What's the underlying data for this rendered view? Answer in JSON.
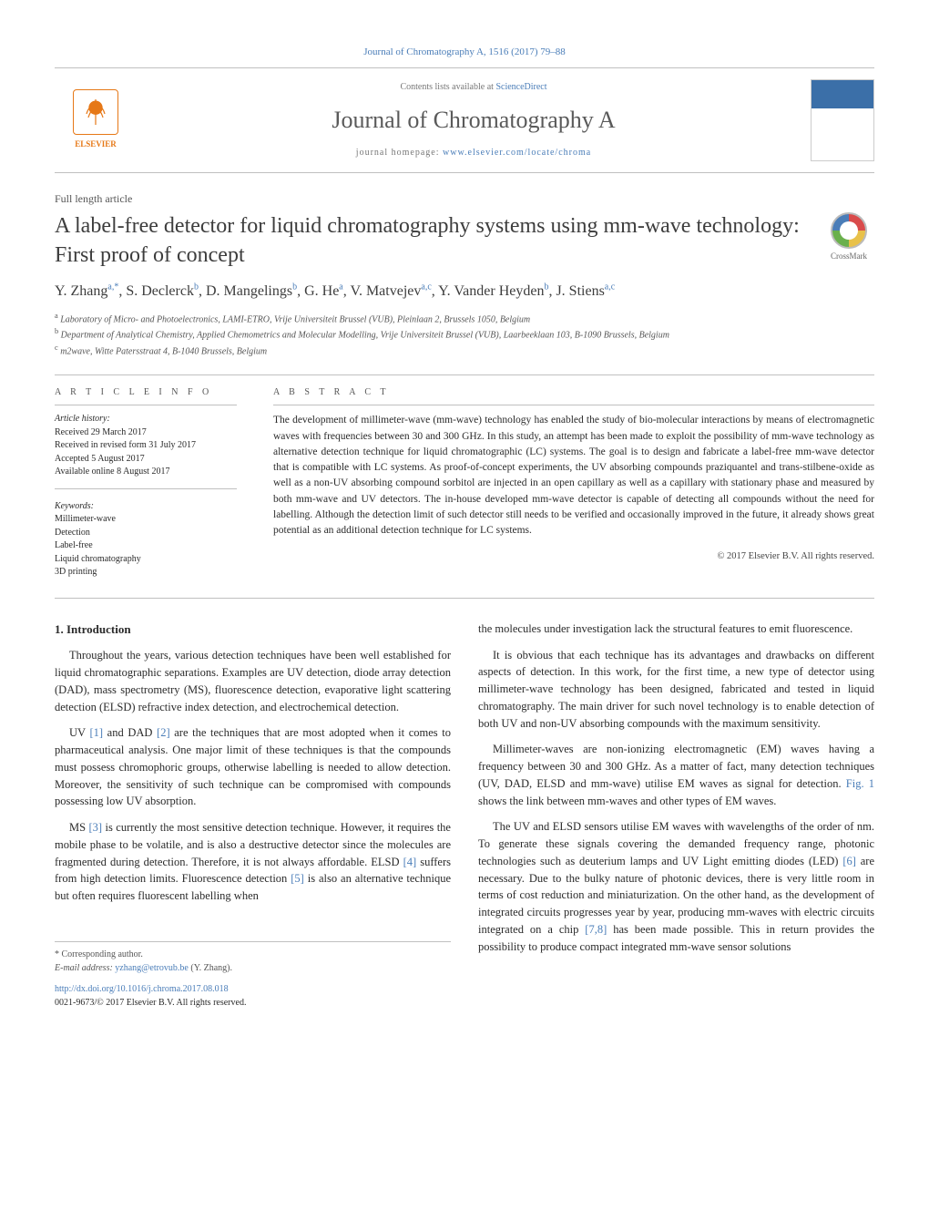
{
  "journal_ref": "Journal of Chromatography A, 1516 (2017) 79–88",
  "contents_line_prefix": "Contents lists available at ",
  "contents_line_link": "ScienceDirect",
  "journal_name": "Journal of Chromatography A",
  "homepage_prefix": "journal homepage: ",
  "homepage_url": "www.elsevier.com/locate/chroma",
  "elsevier_label": "ELSEVIER",
  "article_type": "Full length article",
  "article_title": "A label-free detector for liquid chromatography systems using mm-wave technology: First proof of concept",
  "crossmark_label": "CrossMark",
  "authors_html": "Y. Zhang<sup>a,*</sup>, S. Declerck<sup>b</sup>, D. Mangelings<sup>b</sup>, G. He<sup>a</sup>, V. Matvejev<sup>a,c</sup>, Y. Vander Heyden<sup>b</sup>, J. Stiens<sup>a,c</sup>",
  "affiliations": {
    "a": "Laboratory of Micro- and Photoelectronics, LAMI-ETRO, Vrije Universiteit Brussel (VUB), Pleinlaan 2, Brussels 1050, Belgium",
    "b": "Department of Analytical Chemistry, Applied Chemometrics and Molecular Modelling, Vrije Universiteit Brussel (VUB), Laarbeeklaan 103, B-1090 Brussels, Belgium",
    "c": "m2wave, Witte Patersstraat 4, B-1040 Brussels, Belgium"
  },
  "info_heading": "a r t i c l e   i n f o",
  "abstract_heading": "a b s t r a c t",
  "history_label": "Article history:",
  "history": [
    "Received 29 March 2017",
    "Received in revised form 31 July 2017",
    "Accepted 5 August 2017",
    "Available online 8 August 2017"
  ],
  "keywords_label": "Keywords:",
  "keywords": [
    "Millimeter-wave",
    "Detection",
    "Label-free",
    "Liquid chromatography",
    "3D printing"
  ],
  "abstract_text": "The development of millimeter-wave (mm-wave) technology has enabled the study of bio-molecular interactions by means of electromagnetic waves with frequencies between 30 and 300 GHz. In this study, an attempt has been made to exploit the possibility of mm-wave technology as alternative detection technique for liquid chromatographic (LC) systems. The goal is to design and fabricate a label-free mm-wave detector that is compatible with LC systems. As proof-of-concept experiments, the UV absorbing compounds praziquantel and trans-stilbene-oxide as well as a non-UV absorbing compound sorbitol are injected in an open capillary as well as a capillary with stationary phase and measured by both mm-wave and UV detectors. The in-house developed mm-wave detector is capable of detecting all compounds without the need for labelling. Although the detection limit of such detector still needs to be verified and occasionally improved in the future, it already shows great potential as an additional detection technique for LC systems.",
  "copyright": "© 2017 Elsevier B.V. All rights reserved.",
  "section1_heading": "1. Introduction",
  "col1": {
    "p1": "Throughout the years, various detection techniques have been well established for liquid chromatographic separations. Examples are UV detection, diode array detection (DAD), mass spectrometry (MS), fluorescence detection, evaporative light scattering detection (ELSD) refractive index detection, and electrochemical detection.",
    "p2_a": "UV ",
    "p2_ref1": "[1]",
    "p2_b": " and DAD ",
    "p2_ref2": "[2]",
    "p2_c": " are the techniques that are most adopted when it comes to pharmaceutical analysis. One major limit of these techniques is that the compounds must possess chromophoric groups, otherwise labelling is needed to allow detection. Moreover, the sensitivity of such technique can be compromised with compounds possessing low UV absorption.",
    "p3_a": "MS ",
    "p3_ref3": "[3]",
    "p3_b": " is currently the most sensitive detection technique. However, it requires the mobile phase to be volatile, and is also a destructive detector since the molecules are fragmented during detection. Therefore, it is not always affordable. ELSD ",
    "p3_ref4": "[4]",
    "p3_c": " suffers from high detection limits. Fluorescence detection ",
    "p3_ref5": "[5]",
    "p3_d": " is also an alternative technique but often requires fluorescent labelling when"
  },
  "col2": {
    "p1": "the molecules under investigation lack the structural features to emit fluorescence.",
    "p2": "It is obvious that each technique has its advantages and drawbacks on different aspects of detection. In this work, for the first time, a new type of detector using millimeter-wave technology has been designed, fabricated and tested in liquid chromatography. The main driver for such novel technology is to enable detection of both UV and non-UV absorbing compounds with the maximum sensitivity.",
    "p3_a": "Millimeter-waves are non-ionizing electromagnetic (EM) waves having a frequency between 30 and 300 GHz. As a matter of fact, many detection techniques (UV, DAD, ELSD and mm-wave) utilise EM waves as signal for detection. ",
    "p3_fig": "Fig. 1",
    "p3_b": " shows the link between mm-waves and other types of EM waves.",
    "p4_a": "The UV and ELSD sensors utilise EM waves with wavelengths of the order of nm. To generate these signals covering the demanded frequency range, photonic technologies such as deuterium lamps and UV Light emitting diodes (LED) ",
    "p4_ref6": "[6]",
    "p4_b": " are necessary. Due to the bulky nature of photonic devices, there is very little room in terms of cost reduction and miniaturization. On the other hand, as the development of integrated circuits progresses year by year, producing mm-waves with electric circuits integrated on a chip ",
    "p4_ref78": "[7,8]",
    "p4_c": " has been made possible. This in return provides the possibility to produce compact integrated mm-wave sensor solutions"
  },
  "corr_label": "* Corresponding author.",
  "email_label": "E-mail address: ",
  "email": "yzhang@etrovub.be",
  "email_name": " (Y. Zhang).",
  "doi_url": "http://dx.doi.org/10.1016/j.chroma.2017.08.018",
  "issn_line": "0021-9673/© 2017 Elsevier B.V. All rights reserved.",
  "colors": {
    "link": "#4a7db8",
    "elsevier_orange": "#e67817",
    "text": "#2a2a2a",
    "border": "#c0c0c0"
  }
}
